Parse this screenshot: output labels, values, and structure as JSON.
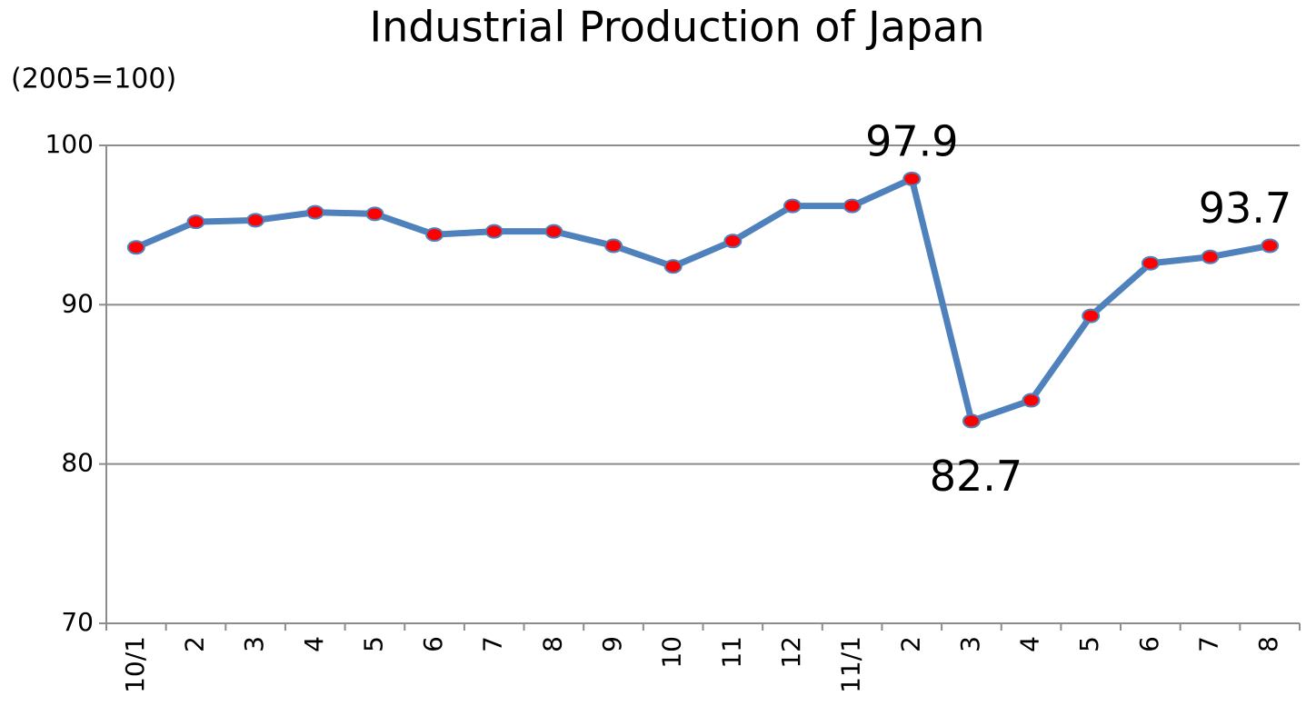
{
  "chart_data": {
    "type": "line",
    "title": "Industrial Production of Japan",
    "y_label": "(2005=100)",
    "categories": [
      "10/1",
      "2",
      "3",
      "4",
      "5",
      "6",
      "7",
      "8",
      "9",
      "10",
      "11",
      "12",
      "11/1",
      "2",
      "3",
      "4",
      "5",
      "6",
      "7",
      "8"
    ],
    "series": [
      {
        "name": "Industrial Production",
        "color": "#4f81bd",
        "marker_color": "#ff0000",
        "values": [
          93.6,
          95.2,
          95.3,
          95.8,
          95.7,
          94.4,
          94.6,
          94.6,
          93.7,
          92.4,
          94.0,
          96.2,
          96.2,
          97.9,
          82.7,
          84.0,
          89.3,
          92.6,
          93.0,
          93.7
        ],
        "value_labels": [
          null,
          null,
          null,
          null,
          null,
          null,
          null,
          null,
          null,
          null,
          null,
          null,
          null,
          "97.9",
          "82.7",
          null,
          null,
          null,
          null,
          "93.7"
        ]
      }
    ],
    "ylim": [
      70,
      100
    ],
    "yticks": [
      70,
      80,
      90,
      100
    ],
    "grid": true
  }
}
